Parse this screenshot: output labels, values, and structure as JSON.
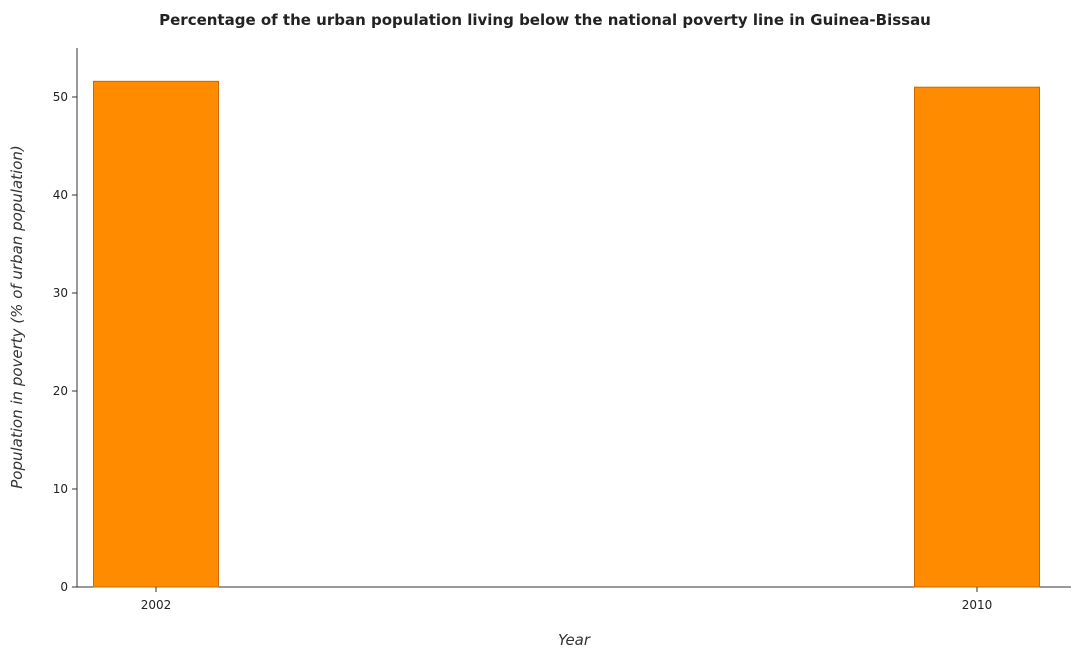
{
  "chart_data": {
    "type": "bar",
    "title": "Percentage of the urban population living below the national poverty line in Guinea-Bissau",
    "xlabel": "Year",
    "ylabel": "Population in poverty (% of urban population)",
    "categories": [
      "2002",
      "2010"
    ],
    "values": [
      51.6,
      51.0
    ],
    "ylim": [
      0,
      55
    ],
    "yticks": [
      0,
      10,
      20,
      30,
      40,
      50
    ],
    "bar_color": "#ff8c00",
    "bar_edge_color": "#cc6600",
    "grid": false,
    "legend": "none"
  }
}
